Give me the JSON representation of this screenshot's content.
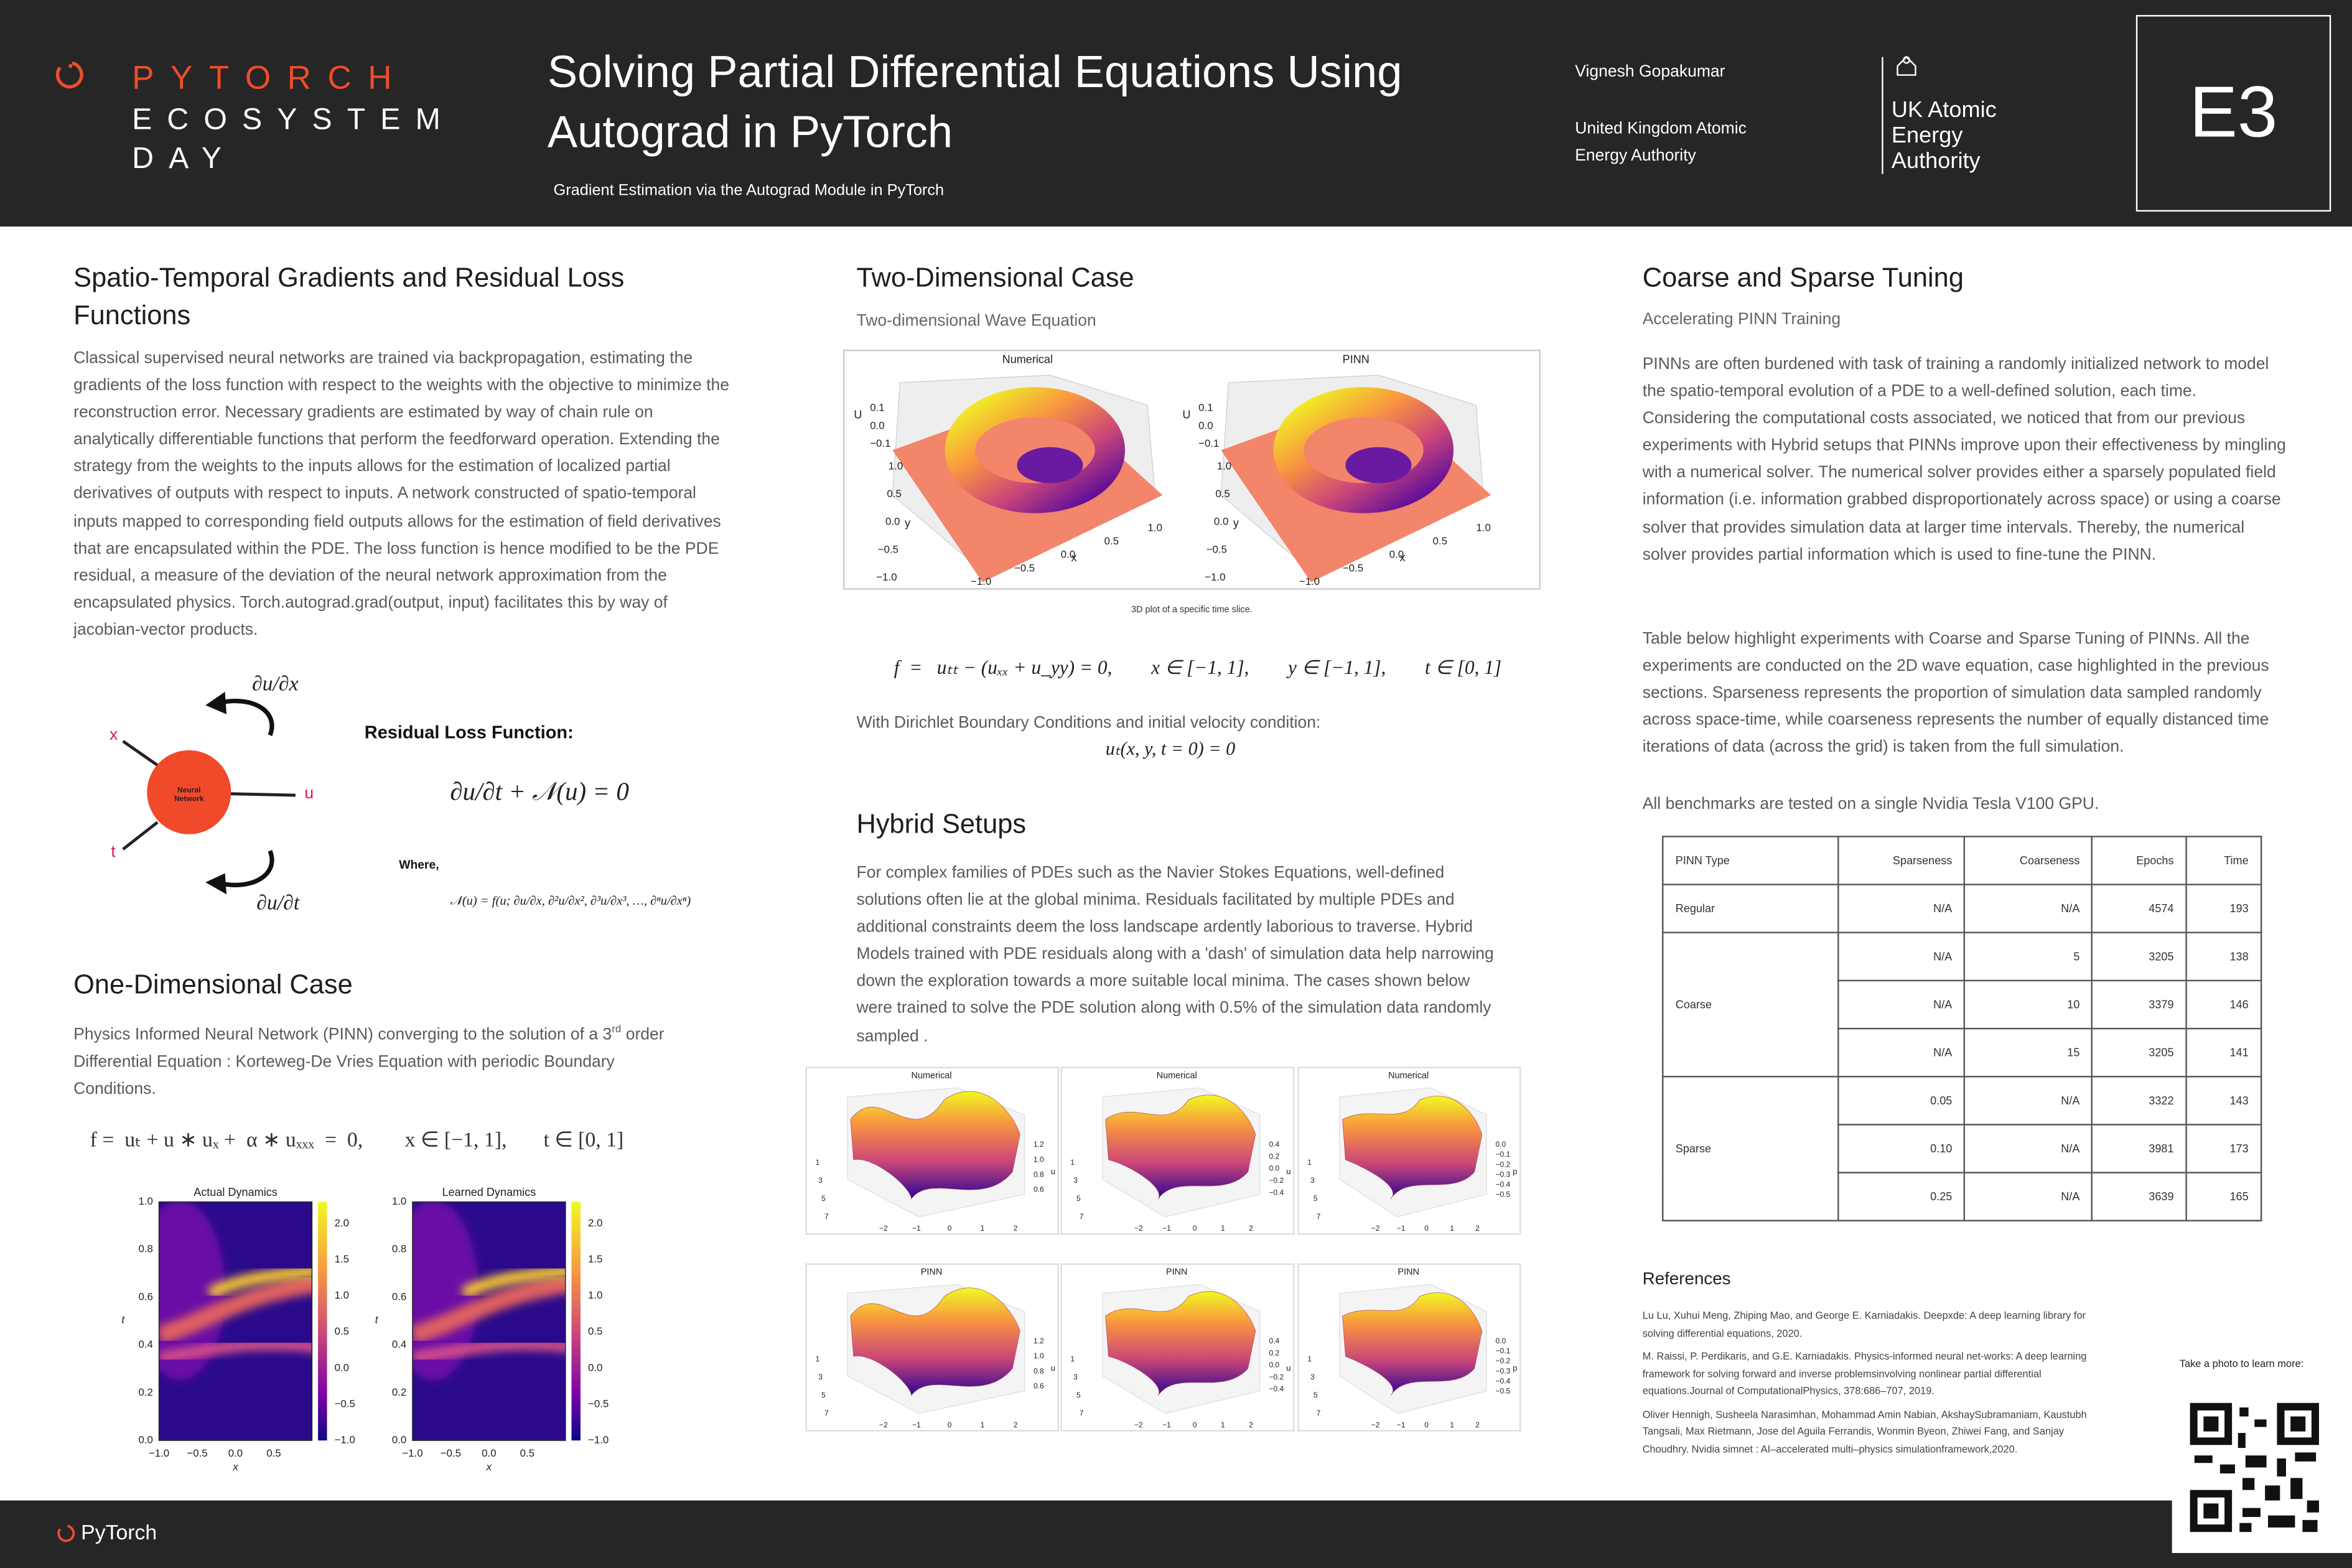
{
  "header": {
    "brand": [
      "PYTORCH",
      "ECOSYSTEM",
      "DAY"
    ],
    "title": "Solving Partial Differential Equations Using Autograd in PyTorch",
    "subtitle": "Gradient Estimation via the Autograd Module in PyTorch",
    "author": "Vignesh Gopakumar",
    "affiliation": "United Kingdom Atomic Energy Authority",
    "logo_text": "UK Atomic Energy Authority",
    "code": "E3"
  },
  "left": {
    "heading": "Spatio-Temporal Gradients and Residual Loss Functions",
    "paragraph": "Classical supervised neural networks are trained via backpropagation, estimating the gradients of the loss function with respect to the weights with the objective to minimize the reconstruction error. Necessary gradients are estimated by way  of chain rule on analytically differentiable functions that perform the feedforward operation. Extending the strategy from the weights to the inputs allows for the estimation of localized partial derivatives of outputs with respect to inputs. A network constructed of spatio-temporal inputs mapped to corresponding field outputs allows for the estimation of field derivatives that are encapsulated within the PDE. The loss function is hence modified to be the PDE residual, a measure of the deviation of the neural network approximation from the encapsulated physics. Torch.autograd.grad(output, input) facilitates this by way of jacobian-vector products.",
    "diagram": {
      "node": "Neural Network",
      "inputs": [
        "x",
        "t"
      ],
      "output": "u",
      "top_grad": "∂u/∂x",
      "bottom_grad": "∂u/∂t",
      "loss_title": "Residual Loss Function:",
      "loss_eq": "∂u/∂t + 𝒩(u) = 0",
      "where": "Where,",
      "operator": "𝒩(u) = f(u; ∂u/∂x, ∂²u/∂x², ∂³u/∂x³, …, ∂ⁿu/∂xⁿ)"
    },
    "one_d": {
      "heading": "One-Dimensional Case",
      "text_before": "Physics Informed Neural Network (PINN) converging to the solution of a 3",
      "sup": "rd",
      "text_after": " order Differential Equation : Korteweg-De Vries Equation with periodic Boundary Conditions.",
      "equation": "f =  uₜ + u ∗ uₓ +  α ∗ uₓₓₓ  =  0,        x ∈ [−1, 1],       t ∈ [0, 1]",
      "plots": [
        {
          "title": "Actual Dynamics"
        },
        {
          "title": "Learned Dynamics"
        }
      ],
      "xlabel": "x",
      "ylabel": "t",
      "xticks": [
        "−1.0",
        "−0.5",
        "0.0",
        "0.5"
      ],
      "yticks": [
        "1.0",
        "0.8",
        "0.6",
        "0.4",
        "0.2",
        "0.0"
      ],
      "cbticks": [
        "2.0",
        "1.5",
        "1.0",
        "0.5",
        "0.0",
        "−0.5",
        "−1.0"
      ]
    }
  },
  "middle": {
    "heading": "Two-Dimensional Case",
    "subtitle": "Two-dimensional Wave Equation",
    "plots": [
      {
        "title": "Numerical"
      },
      {
        "title": "PINN"
      }
    ],
    "zlabel": "U",
    "zticks": [
      "0.1",
      "0.0",
      "−0.1"
    ],
    "ylabel": "y",
    "yticks": [
      "1.0",
      "0.5",
      "0.0",
      "−0.5",
      "−1.0"
    ],
    "xlabel": "x",
    "xticks": [
      "−1.0",
      "−0.5",
      "0.0",
      "0.5",
      "1.0"
    ],
    "caption": "3D plot of a specific time slice.",
    "equation": "f  =   uₜₜ − (uₓₓ + u_yy) = 0,        x ∈ [−1, 1],        y ∈ [−1, 1],        t ∈ [0, 1]",
    "condition": "With Dirichlet Boundary Conditions and initial velocity condition:",
    "condition_eq": "uₜ(x, y, t = 0) = 0",
    "hybrid_heading": "Hybrid Setups",
    "hybrid_paragraph": "For complex families of PDEs such as the Navier Stokes Equations, well-defined solutions often lie at the global minima. Residuals facilitated by multiple PDEs and additional constraints deem the loss landscape ardently laborious to traverse. Hybrid Models trained with PDE residuals along with a 'dash' of simulation data help narrowing down the exploration towards a more suitable local minima. The cases shown below were trained to solve the PDE solution along with 0.5% of the simulation data randomly sampled .",
    "hybrid": {
      "xticks": [
        "−2",
        "−1",
        "0",
        "1",
        "2"
      ],
      "yticks": [
        "1",
        "3",
        "5",
        "7"
      ],
      "panels": [
        {
          "title": "Numerical",
          "zlabel": "u",
          "zticks": [
            "1.2",
            "1.0",
            "0.8",
            "0.6"
          ]
        },
        {
          "title": "Numerical",
          "zlabel": "u",
          "zticks": [
            "0.4",
            "0.2",
            "0.0",
            "−0.2",
            "−0.4"
          ]
        },
        {
          "title": "Numerical",
          "zlabel": "p",
          "zticks": [
            "0.0",
            "−0.1",
            "−0.2",
            "−0.3",
            "−0.4",
            "−0.5"
          ]
        },
        {
          "title": "PINN",
          "zlabel": "u",
          "zticks": [
            "1.2",
            "1.0",
            "0.8",
            "0.6"
          ]
        },
        {
          "title": "PINN",
          "zlabel": "u",
          "zticks": [
            "0.4",
            "0.2",
            "0.0",
            "−0.2",
            "−0.4"
          ]
        },
        {
          "title": "PINN",
          "zlabel": "p",
          "zticks": [
            "0.0",
            "−0.1",
            "−0.2",
            "−0.3",
            "−0.4",
            "−0.5"
          ]
        }
      ]
    }
  },
  "right": {
    "heading": "Coarse and Sparse Tuning",
    "subtitle": "Accelerating PINN Training",
    "paragraphs": [
      "PINNs are often burdened with task of training a randomly initialized network to model the spatio-temporal evolution of a PDE to a well-defined solution, each time. Considering the computational costs associated, we noticed that from our previous experiments with Hybrid setups that PINNs improve upon their effectiveness by mingling with a numerical solver. The numerical solver provides either a sparsely populated field information (i.e. information grabbed disproportionately across space) or using a coarse solver that provides simulation data at larger time intervals. Thereby, the numerical solver provides partial information which is used to fine-tune the PINN.",
      "Table below highlight experiments with Coarse and Sparse Tuning of PINNs. All the experiments are conducted on the 2D wave equation, case highlighted in the previous sections. Sparseness represents the proportion of simulation data sampled randomly across space-time, while coarseness represents the number of equally distanced time iterations of data (across the grid) is taken from the full simulation.",
      "All benchmarks are tested on a single Nvidia Tesla V100 GPU."
    ],
    "table": {
      "header": [
        "PINN Type",
        "Sparseness",
        "Coarseness",
        "Epochs",
        "Time"
      ],
      "groups": [
        {
          "type": "Regular",
          "rows": [
            [
              "N/A",
              "N/A",
              "4574",
              "193"
            ]
          ]
        },
        {
          "type": "Coarse",
          "rows": [
            [
              "N/A",
              "5",
              "3205",
              "138"
            ],
            [
              "N/A",
              "10",
              "3379",
              "146"
            ],
            [
              "N/A",
              "15",
              "3205",
              "141"
            ]
          ]
        },
        {
          "type": "Sparse",
          "rows": [
            [
              "0.05",
              "N/A",
              "3322",
              "143"
            ],
            [
              "0.10",
              "N/A",
              "3981",
              "173"
            ],
            [
              "0.25",
              "N/A",
              "3639",
              "165"
            ]
          ]
        }
      ]
    },
    "references_heading": "References",
    "references": [
      "Lu Lu, Xuhui Meng, Zhiping Mao, and George E. Karniadakis. Deepxde: A deep learning library for solving differential equations, 2020.",
      "M. Raissi, P. Perdikaris, and G.E. Karniadakis. Physics-informed neural net-works: A deep learning framework for solving forward and inverse problemsinvolving nonlinear partial differential equations.Journal of ComputationalPhysics, 378:686–707, 2019.",
      "Oliver Hennigh, Susheela Narasimhan, Mohammad Amin Nabian, AkshaySubramaniam, Kaustubh Tangsali, Max Rietmann, Jose del Aguila Ferrandis, Wonmin Byeon, Zhiwei Fang, and Sanjay Choudhry. Nvidia simnet : AI–accelerated multi–physics simulationframework,2020."
    ],
    "qr_label": "Take a photo to learn more:"
  },
  "footer": {
    "brand": "PyTorch"
  }
}
